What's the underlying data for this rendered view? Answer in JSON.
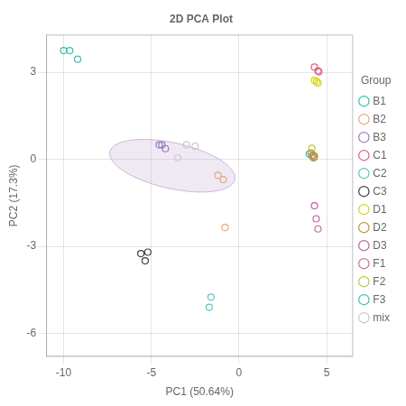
{
  "chart_data": {
    "type": "scatter",
    "title": "2D PCA Plot",
    "xlabel": "PC1 (50.64%)",
    "ylabel": "PC2 (17.3%)",
    "xlim": [
      -11,
      6.5
    ],
    "ylim": [
      -6.8,
      4.3
    ],
    "xticks": [
      -10,
      -5,
      0,
      5
    ],
    "yticks": [
      -6,
      -3,
      0,
      3
    ],
    "grid": true,
    "legend": "right",
    "legend_title": "Group",
    "marker": "circle",
    "series": [
      {
        "name": "B1",
        "color": "#3bbfaa",
        "x": [
          -10.0,
          -9.65,
          -9.2
        ],
        "values": [
          3.75,
          3.75,
          3.45
        ]
      },
      {
        "name": "B2",
        "color": "#e8a87c",
        "x": [
          -1.2,
          -0.9,
          -0.8
        ],
        "values": [
          -0.55,
          -0.7,
          -2.35
        ]
      },
      {
        "name": "B3",
        "color": "#9b7ebf",
        "x": [
          -4.55,
          -4.4,
          -4.2
        ],
        "values": [
          0.5,
          0.5,
          0.37
        ]
      },
      {
        "name": "C1",
        "color": "#e06080",
        "x": [
          4.3,
          4.5,
          4.55
        ],
        "values": [
          3.18,
          3.05,
          3.02
        ]
      },
      {
        "name": "C2",
        "color": "#5cc8c8",
        "x": [
          -1.6,
          -1.7
        ],
        "values": [
          -4.75,
          -5.1
        ]
      },
      {
        "name": "C3",
        "color": "#404040",
        "x": [
          -5.6,
          -5.2,
          -5.35
        ],
        "values": [
          -3.25,
          -3.2,
          -3.5
        ]
      },
      {
        "name": "D1",
        "color": "#d4d416",
        "x": [
          4.3,
          4.42,
          4.5
        ],
        "values": [
          2.72,
          2.68,
          2.63
        ]
      },
      {
        "name": "D2",
        "color": "#c8903c",
        "x": [
          4.1,
          4.22,
          4.3,
          4.25
        ],
        "values": [
          0.22,
          0.15,
          0.1,
          0.05
        ]
      },
      {
        "name": "D3",
        "color": "#c060a0",
        "x": [
          4.3,
          4.4
        ],
        "values": [
          -1.6,
          -2.05
        ]
      },
      {
        "name": "F1",
        "color": "#c87090",
        "x": [
          4.5
        ],
        "values": [
          -2.4
        ]
      },
      {
        "name": "F2",
        "color": "#b8c840",
        "x": [
          4.15
        ],
        "values": [
          0.38
        ]
      },
      {
        "name": "F3",
        "color": "#3bbfbf",
        "x": [
          4.0,
          4.15,
          4.25
        ],
        "values": [
          0.18,
          0.12,
          0.08
        ]
      },
      {
        "name": "mix",
        "color": "#c8c8d0",
        "x": [
          -3.5,
          -3.0,
          -2.5
        ],
        "values": [
          0.05,
          0.5,
          0.45
        ]
      }
    ],
    "ellipse": {
      "center_x": -3.8,
      "center_y": -0.22,
      "width": 7.2,
      "height": 1.6,
      "angle": -7,
      "color": "#c0a8d0"
    }
  }
}
